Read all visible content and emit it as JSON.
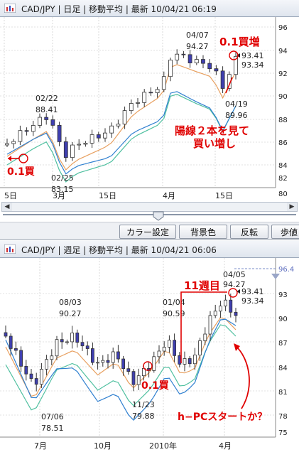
{
  "top_chart": {
    "title": "CAD/JPY | 日足 | 移動平均 | 最新 10/04/21 06:19",
    "y_ticks": [
      "96",
      "94",
      "92",
      "90",
      "88",
      "86",
      "84",
      "82",
      "80"
    ],
    "x_ticks": [
      "5日",
      "3月",
      "15日",
      "4月",
      "15日"
    ],
    "annotations": {
      "high_date": "04/07",
      "high_value": "94.27",
      "feb22_date": "02/22",
      "feb22_value": "88.41",
      "feb25_date": "02/25",
      "feb25_value": "83.15",
      "apr19_date": "04/19",
      "apr19_value": "89.96",
      "last_a": "93.41",
      "last_b": "93.34"
    },
    "notes": {
      "buy_increase": "0.1買増",
      "buy": "0.1買",
      "positive_line_1": "陽線２本を見て",
      "positive_line_2": "買い増し"
    }
  },
  "toolbar": {
    "color_settings": "カラー設定",
    "background_color": "背景色",
    "invert": "反転",
    "step": "歩値"
  },
  "bottom_chart": {
    "title": "CAD/JPY | 週足 | 移動平均 | 最新 10/04/21 06:06",
    "y_ticks": [
      "96.4",
      "93",
      "90",
      "87",
      "84",
      "81",
      "78",
      "75"
    ],
    "x_ticks": [
      "7月",
      "10月",
      "2010年",
      "4月"
    ],
    "annotations": {
      "aug03_date": "08/03",
      "aug03_value": "90.27",
      "jan04_date": "01/04",
      "jan04_value": "90.59",
      "apr05_date": "04/05",
      "apr05_value": "94.27",
      "jul06_date": "07/06",
      "jul06_value": "78.51",
      "nov23_date": "11/23",
      "nov23_value": "79.88",
      "last_a": "93.41",
      "last_b": "93.34"
    },
    "notes": {
      "eleven_weeks": "11週目",
      "buy": "0.1買",
      "h_pc_start": "h−PCスタートか？"
    }
  },
  "colors": {
    "bull": "#ffffff",
    "bear": "#3f3fb0",
    "ma_short": "#e8a060",
    "ma_mid": "#50c0a0",
    "ma_long": "#3080d0",
    "annotation": "#e00000"
  }
}
